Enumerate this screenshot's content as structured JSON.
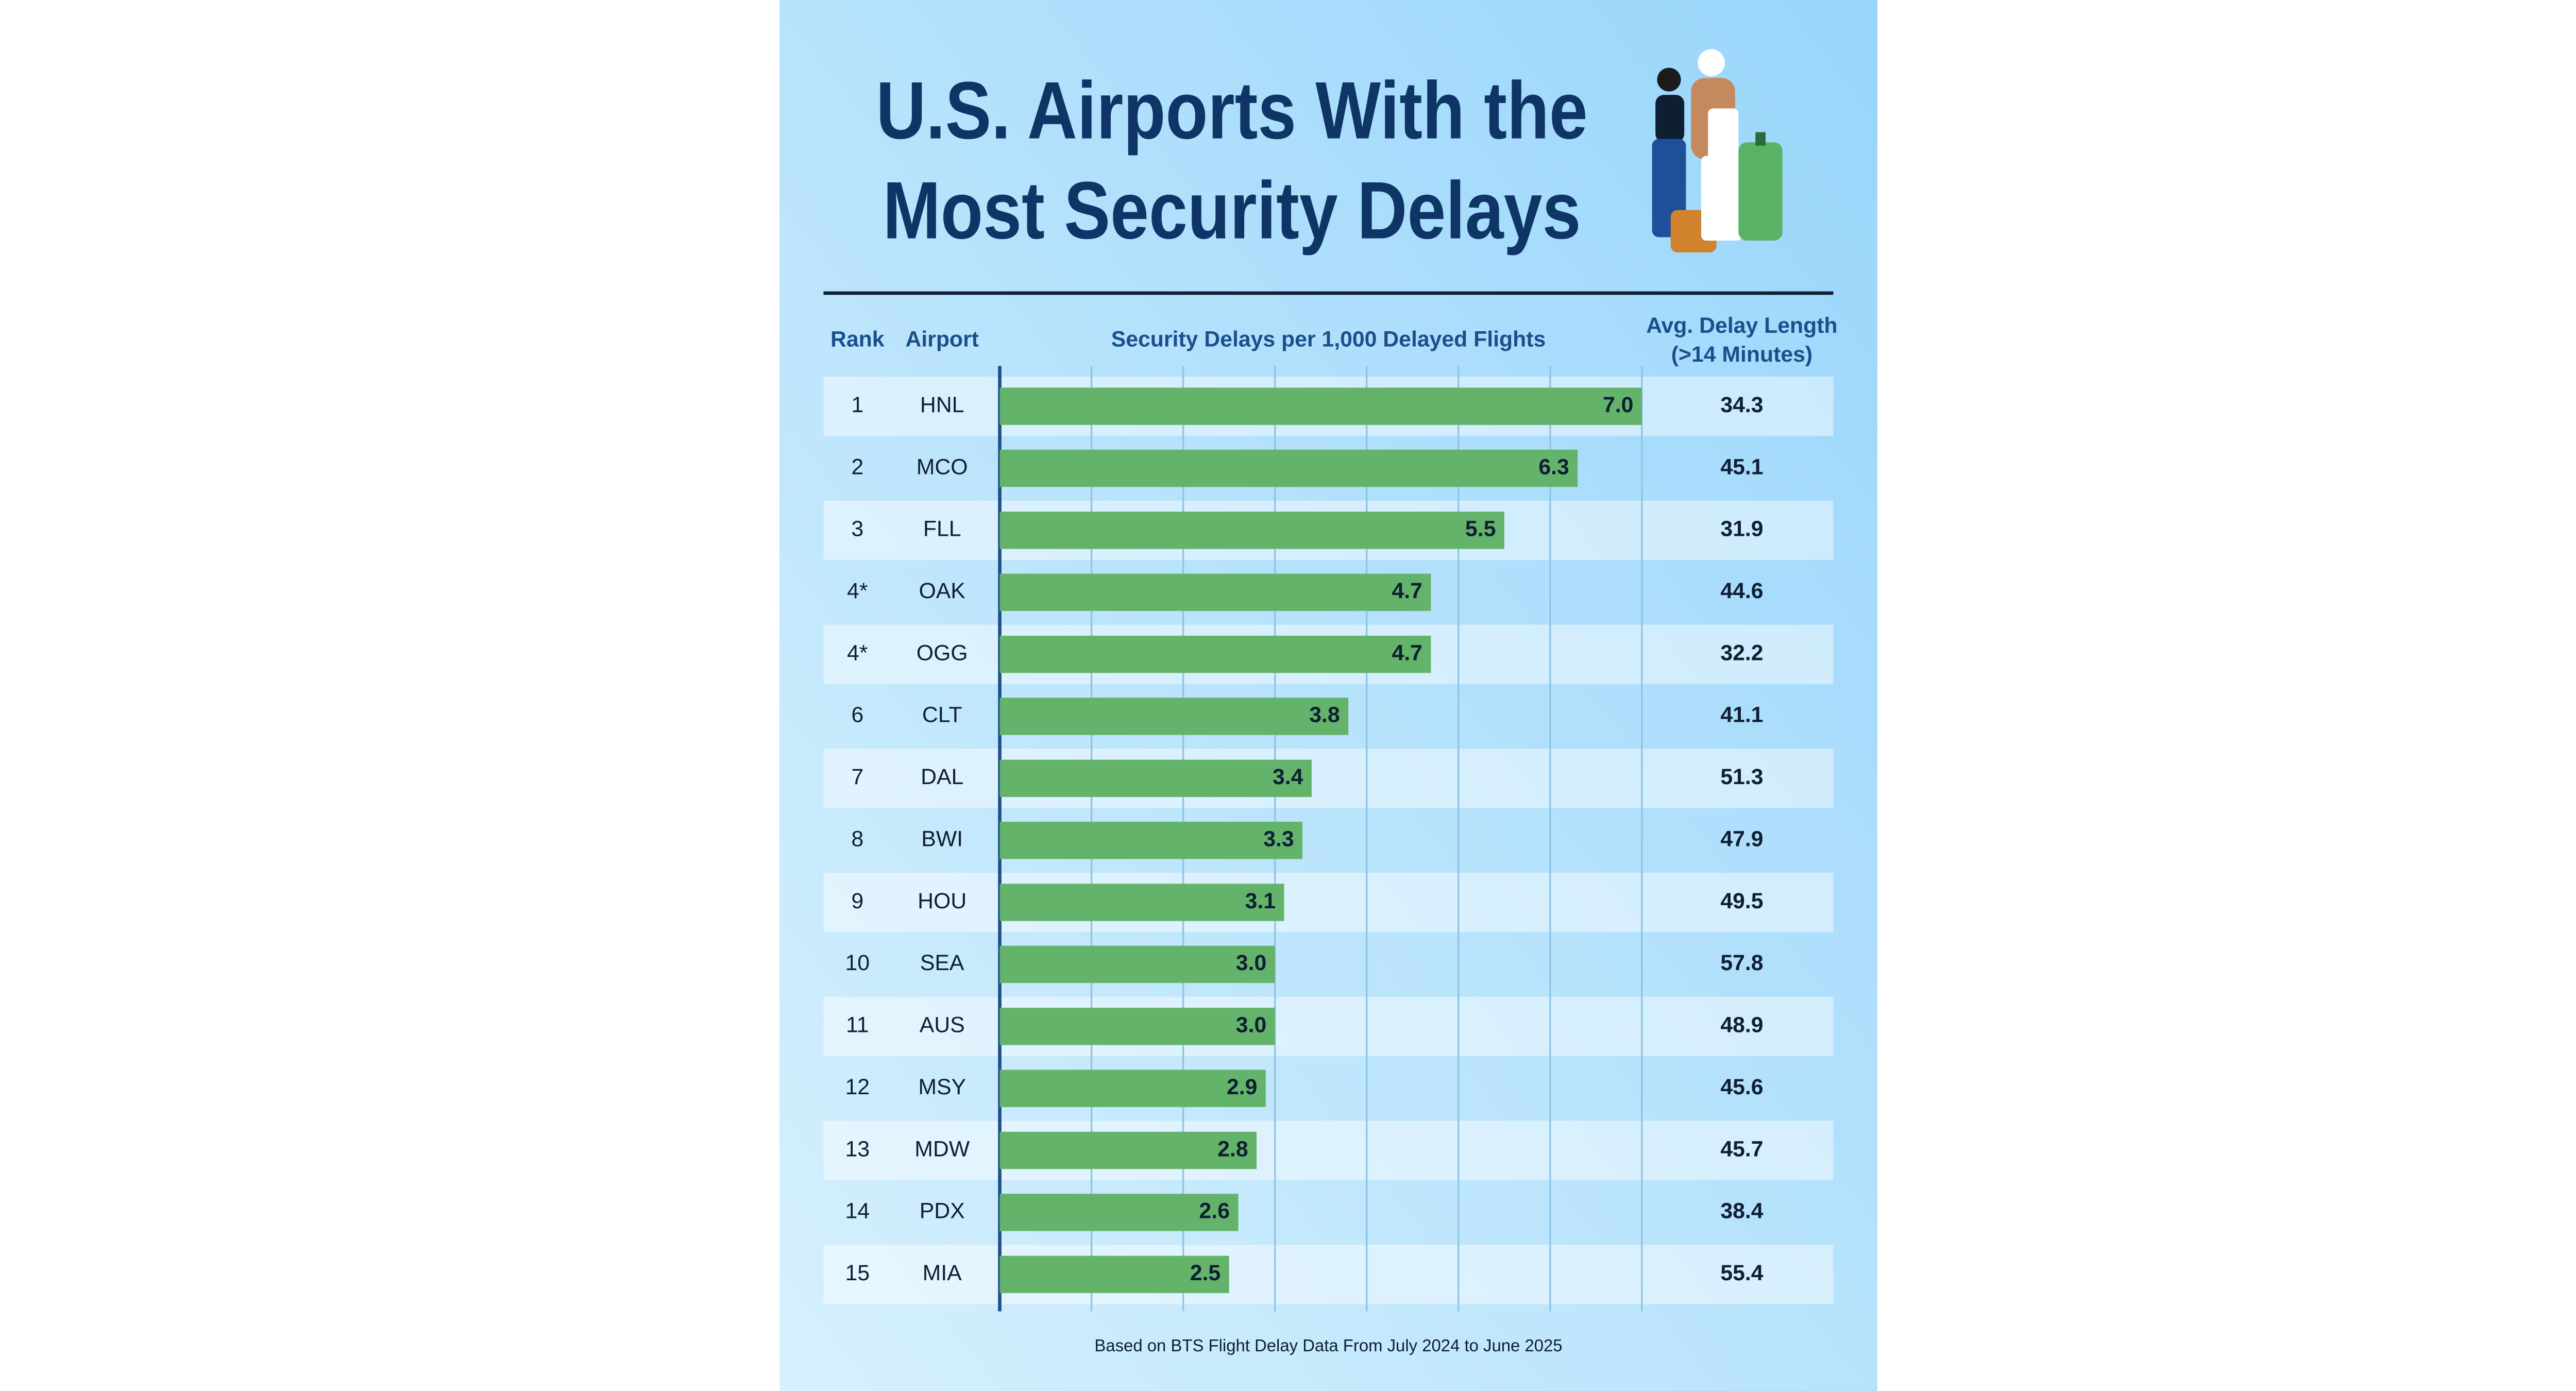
{
  "chart_data": {
    "type": "bar",
    "title": [
      "U.S. Airports With the",
      "Most Security Delays"
    ],
    "rank_header": "Rank",
    "airport_header": "Airport",
    "x_label": "Security Delays per 1,000 Delayed Flights",
    "avg_header": [
      "Avg. Delay Length",
      "(>14 Minutes)"
    ],
    "ranks": [
      "1",
      "2",
      "3",
      "4*",
      "4*",
      "6",
      "7",
      "8",
      "9",
      "10",
      "11",
      "12",
      "13",
      "14",
      "15"
    ],
    "categories": [
      "HNL",
      "MCO",
      "FLL",
      "OAK",
      "OGG",
      "CLT",
      "DAL",
      "BWI",
      "HOU",
      "SEA",
      "AUS",
      "MSY",
      "MDW",
      "PDX",
      "MIA"
    ],
    "values": [
      7.0,
      6.3,
      5.5,
      4.7,
      4.7,
      3.8,
      3.4,
      3.3,
      3.1,
      3.0,
      3.0,
      2.9,
      2.8,
      2.6,
      2.5
    ],
    "value_labels": [
      "7.0",
      "6.3",
      "5.5",
      "4.7",
      "4.7",
      "3.8",
      "3.4",
      "3.3",
      "3.1",
      "3.0",
      "3.0",
      "2.9",
      "2.8",
      "2.6",
      "2.5"
    ],
    "avg_delay": [
      34.3,
      45.1,
      31.9,
      44.6,
      32.2,
      41.1,
      51.3,
      47.9,
      49.5,
      57.8,
      48.9,
      45.6,
      45.7,
      38.4,
      55.4
    ],
    "color": "#63b36b",
    "xlim": [
      0,
      7
    ],
    "grid_lines": [
      1,
      2,
      3,
      4,
      5,
      6,
      7
    ],
    "note": "Based on BTS Flight Delay Data From July 2024 to June 2025"
  }
}
